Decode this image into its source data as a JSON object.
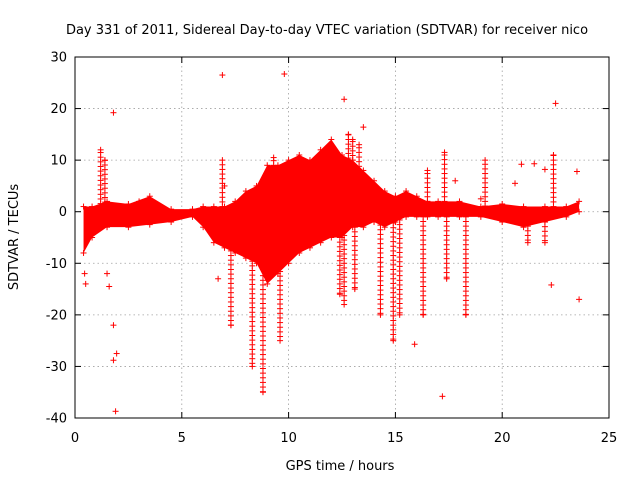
{
  "chart_data": {
    "type": "scatter",
    "title": "Day 331 of 2011, Sidereal Day-to-day VTEC variation (SDTVAR) for receiver nico",
    "xlabel": "GPS time / hours",
    "ylabel": "SDTVAR / TECUs",
    "xlim": [
      0,
      25
    ],
    "ylim": [
      -40,
      30
    ],
    "xticks": [
      "0",
      "5",
      "10",
      "15",
      "20",
      "25"
    ],
    "yticks": [
      "30",
      "20",
      "10",
      "0",
      "-10",
      "-20",
      "-30",
      "-40"
    ],
    "grid": true,
    "marker": "plus",
    "color": "#ff0000",
    "main_band": [
      [
        0.4,
        -8,
        1
      ],
      [
        0.8,
        -5,
        1
      ],
      [
        1.5,
        -3,
        2
      ],
      [
        2.5,
        -3,
        1.5
      ],
      [
        3.5,
        -2.5,
        3
      ],
      [
        4.5,
        -2,
        0.5
      ],
      [
        5.5,
        -1,
        0.5
      ],
      [
        6.0,
        -3,
        1
      ],
      [
        6.5,
        -6,
        1
      ],
      [
        7.0,
        -7,
        1
      ],
      [
        7.5,
        -8,
        2
      ],
      [
        8.0,
        -9,
        4
      ],
      [
        8.5,
        -10,
        5
      ],
      [
        9.0,
        -14,
        9
      ],
      [
        9.5,
        -12,
        9
      ],
      [
        10.0,
        -10,
        10
      ],
      [
        10.5,
        -8,
        11
      ],
      [
        11.0,
        -7,
        10
      ],
      [
        11.5,
        -6,
        12
      ],
      [
        12.0,
        -5,
        14
      ],
      [
        12.5,
        -5,
        11
      ],
      [
        13.0,
        -3,
        10
      ],
      [
        13.5,
        -3,
        8
      ],
      [
        14.0,
        -2,
        6
      ],
      [
        14.5,
        -3,
        4
      ],
      [
        15.0,
        -2,
        3
      ],
      [
        15.5,
        -1,
        4
      ],
      [
        16.0,
        -1,
        3
      ],
      [
        16.5,
        -1,
        2
      ],
      [
        17.0,
        -1,
        2
      ],
      [
        18.0,
        -1,
        2
      ],
      [
        19.0,
        -1,
        1
      ],
      [
        20.0,
        -2,
        1.5
      ],
      [
        21.0,
        -3,
        1
      ],
      [
        22.0,
        -2,
        1
      ],
      [
        23.0,
        -1,
        1
      ],
      [
        23.6,
        0,
        2
      ]
    ],
    "dips": [
      [
        7.3,
        -22
      ],
      [
        8.3,
        -30
      ],
      [
        8.8,
        -35
      ],
      [
        9.6,
        -25
      ],
      [
        12.4,
        -16
      ],
      [
        12.6,
        -18
      ],
      [
        13.1,
        -15
      ],
      [
        14.3,
        -20
      ],
      [
        14.9,
        -25
      ],
      [
        15.2,
        -20
      ],
      [
        16.3,
        -20
      ],
      [
        17.4,
        -13
      ],
      [
        18.3,
        -20
      ],
      [
        21.2,
        -6
      ],
      [
        22.0,
        -6
      ]
    ],
    "spikes": [
      [
        1.2,
        12
      ],
      [
        1.4,
        10
      ],
      [
        6.9,
        10
      ],
      [
        9.3,
        10.5
      ],
      [
        12.3,
        10
      ],
      [
        12.8,
        15
      ],
      [
        13.0,
        14
      ],
      [
        13.3,
        13
      ],
      [
        16.5,
        8
      ],
      [
        17.3,
        11.5
      ],
      [
        19.2,
        10
      ],
      [
        22.4,
        11
      ]
    ],
    "outliers": [
      [
        6.9,
        26.5
      ],
      [
        9.8,
        26.7
      ],
      [
        12.6,
        21.8
      ],
      [
        13.5,
        16.4
      ],
      [
        22.5,
        21
      ],
      [
        23.5,
        7.8
      ],
      [
        1.8,
        19.2
      ],
      [
        1.8,
        -22
      ],
      [
        1.8,
        -28.8
      ],
      [
        1.95,
        -27.5
      ],
      [
        1.9,
        -38.7
      ],
      [
        1.5,
        -12
      ],
      [
        1.6,
        -14.5
      ],
      [
        0.5,
        -14
      ],
      [
        0.45,
        -12
      ],
      [
        17.2,
        -35.8
      ],
      [
        15.9,
        -25.7
      ],
      [
        22.3,
        -14.2
      ],
      [
        23.6,
        -17
      ],
      [
        6.7,
        -13
      ],
      [
        20.9,
        9.2
      ],
      [
        21.5,
        9.3
      ],
      [
        22.0,
        8.2
      ],
      [
        20.6,
        5.5
      ],
      [
        7.0,
        5.0
      ],
      [
        19.0,
        2.5
      ],
      [
        20.3,
        -1
      ],
      [
        3.0,
        2
      ],
      [
        17.8,
        6
      ]
    ]
  }
}
